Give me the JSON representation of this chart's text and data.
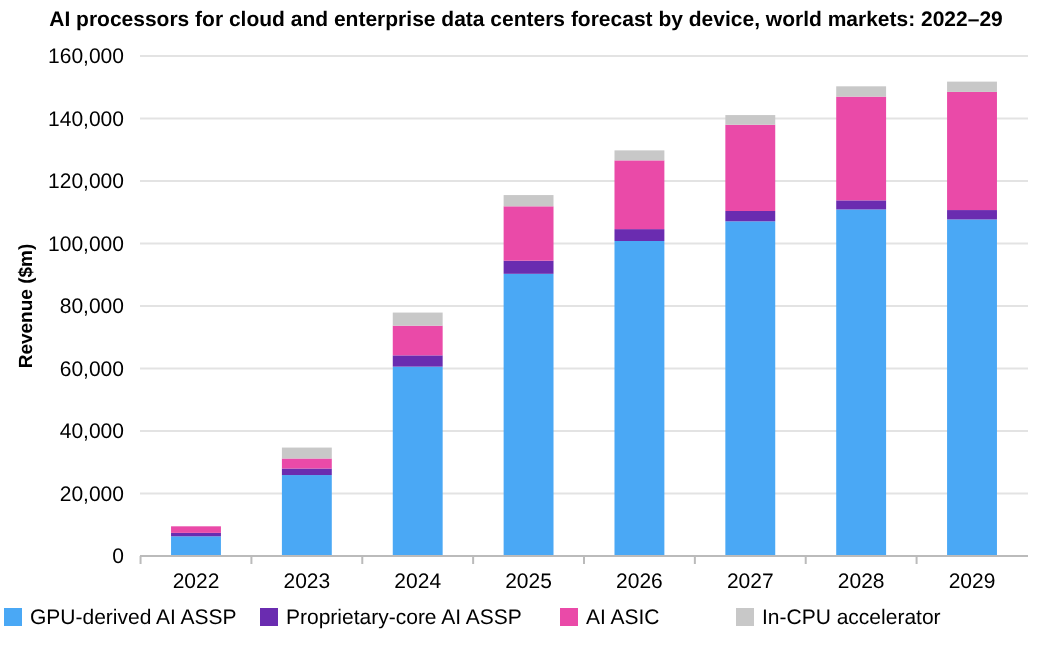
{
  "chart_data": {
    "type": "bar",
    "stacked": true,
    "title": "AI processors for cloud and enterprise data centers forecast by device, world markets: 2022–29",
    "ylabel": "Revenue ($m)",
    "categories": [
      "2022",
      "2023",
      "2024",
      "2025",
      "2026",
      "2027",
      "2028",
      "2029"
    ],
    "series": [
      {
        "name": "GPU-derived AI ASSP",
        "color": "#4aa8f5",
        "values": [
          6300,
          25900,
          60600,
          90300,
          100800,
          107100,
          110900,
          107700
        ]
      },
      {
        "name": "Proprietary-core AI ASSP",
        "color": "#6a2cb0",
        "values": [
          1100,
          2100,
          3600,
          4200,
          3800,
          3300,
          2900,
          3000
        ]
      },
      {
        "name": "AI ASIC",
        "color": "#ea4aa8",
        "values": [
          2100,
          3200,
          9500,
          17400,
          22000,
          27600,
          33200,
          37800
        ]
      },
      {
        "name": "In-CPU accelerator",
        "color": "#c8c8c8",
        "values": [
          null,
          3500,
          4200,
          3600,
          3200,
          3100,
          3300,
          3300
        ]
      }
    ],
    "ylim": [
      0,
      160000
    ],
    "yticks": [
      {
        "value": 0,
        "label": "0"
      },
      {
        "value": 20000,
        "label": "20,000"
      },
      {
        "value": 40000,
        "label": "40,000"
      },
      {
        "value": 60000,
        "label": "60,000"
      },
      {
        "value": 80000,
        "label": "80,000"
      },
      {
        "value": 100000,
        "label": "100,000"
      },
      {
        "value": 120000,
        "label": "120,000"
      },
      {
        "value": 140000,
        "label": "140,000"
      },
      {
        "value": 160000,
        "label": "160,000"
      }
    ],
    "grid": "y",
    "legend": "bottom"
  }
}
